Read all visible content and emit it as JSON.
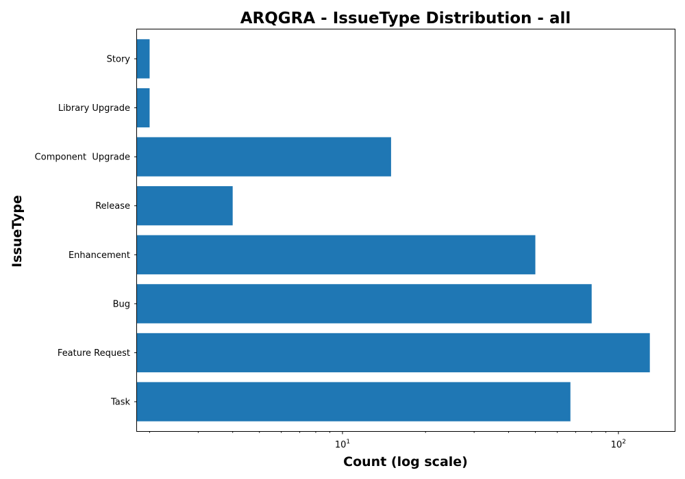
{
  "chart_data": {
    "type": "bar",
    "orientation": "horizontal",
    "title": "ARQGRA - IssueType Distribution - all",
    "xlabel": "Count (log scale)",
    "ylabel": "IssueType",
    "xscale": "log",
    "xlim": [
      1.8,
      160
    ],
    "x_ticks": [
      {
        "value": 10,
        "base": "10",
        "exp": "1"
      },
      {
        "value": 100,
        "base": "10",
        "exp": "2"
      }
    ],
    "categories": [
      "Task",
      "Feature Request",
      "Bug",
      "Enhancement",
      "Release",
      "Component  Upgrade",
      "Library Upgrade",
      "Story"
    ],
    "values": [
      67,
      130,
      80,
      50,
      4,
      15,
      2,
      2
    ],
    "bar_color": "#1f77b4",
    "grid": false,
    "legend": null
  }
}
